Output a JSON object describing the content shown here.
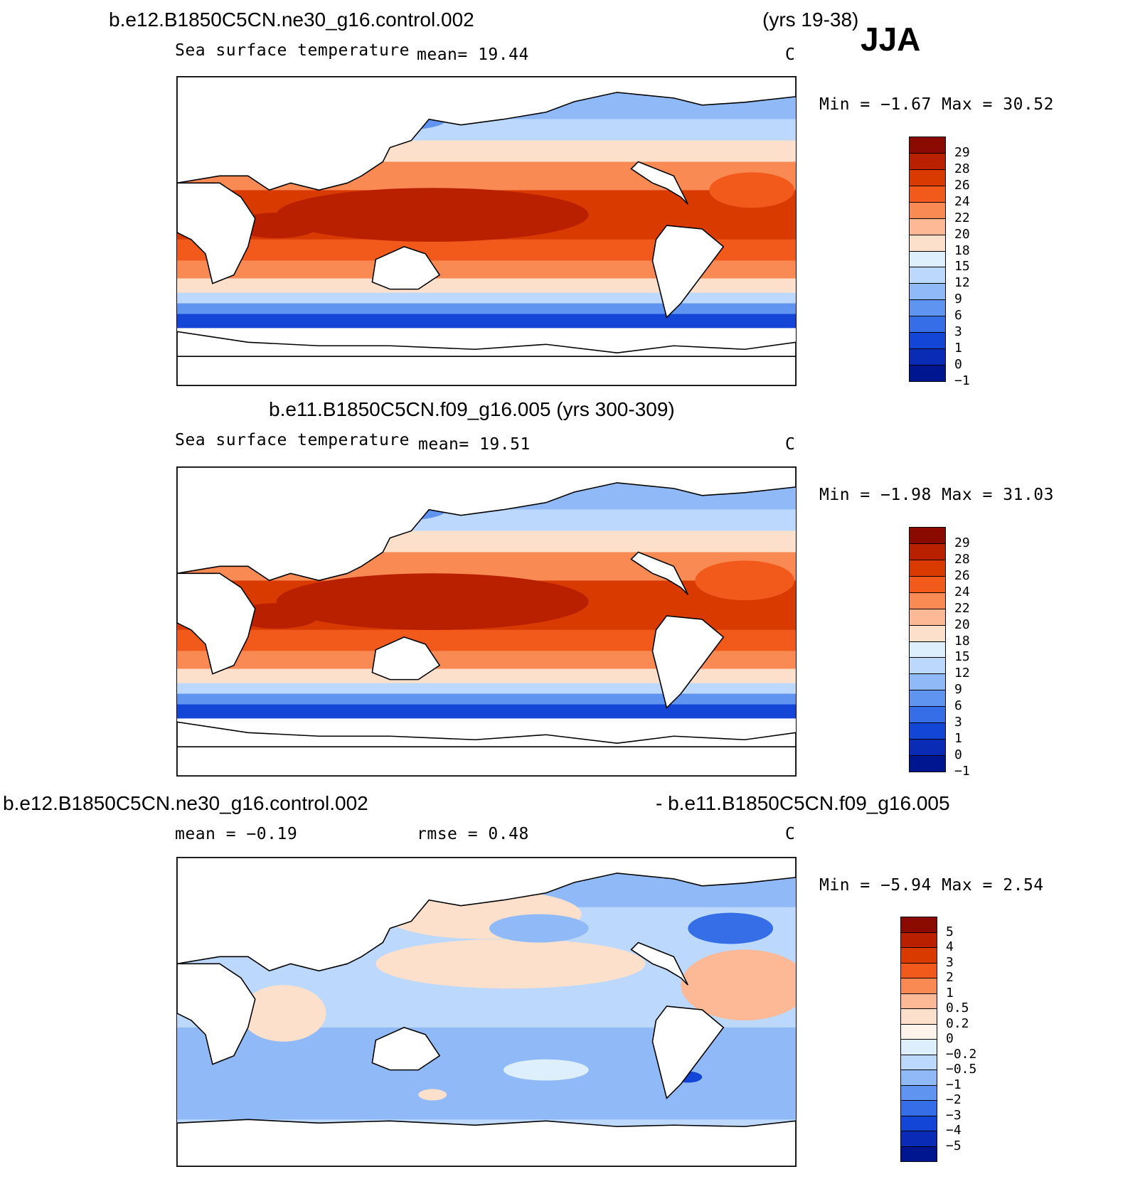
{
  "season": "JJA",
  "panels": [
    {
      "title_left": "b.e12.B1850C5CN.ne30_g16.control.002",
      "title_right": "(yrs 19-38)",
      "field": "Sea surface temperature",
      "stat1": "mean=   19.44",
      "stat2": "",
      "units": "C",
      "minmax": "Min =   −1.67 Max =   30.52",
      "colorbar": {
        "labels": [
          "29",
          "28",
          "26",
          "24",
          "22",
          "20",
          "18",
          "15",
          "12",
          "9",
          "6",
          "3",
          "1",
          "0",
          "−1"
        ],
        "colors": [
          "#8a0a00",
          "#b82000",
          "#d83a00",
          "#f25a1c",
          "#fa8a54",
          "#fdb896",
          "#fde0cc",
          "#ddeefd",
          "#bcd8fc",
          "#8fbaf7",
          "#5f95f0",
          "#356ee6",
          "#1346d6",
          "#0a2bb6",
          "#001590"
        ]
      }
    },
    {
      "title_left": "b.e11.B1850C5CN.f09_g16.005 (yrs 300-309)",
      "title_right": "",
      "field": "Sea surface temperature",
      "stat1": "mean=   19.51",
      "stat2": "",
      "units": "C",
      "minmax": "Min =   −1.98 Max =   31.03",
      "colorbar": {
        "labels": [
          "29",
          "28",
          "26",
          "24",
          "22",
          "20",
          "18",
          "15",
          "12",
          "9",
          "6",
          "3",
          "1",
          "0",
          "−1"
        ],
        "colors": [
          "#8a0a00",
          "#b82000",
          "#d83a00",
          "#f25a1c",
          "#fa8a54",
          "#fdb896",
          "#fde0cc",
          "#ddeefd",
          "#bcd8fc",
          "#8fbaf7",
          "#5f95f0",
          "#356ee6",
          "#1346d6",
          "#0a2bb6",
          "#001590"
        ]
      }
    },
    {
      "title_left": "b.e12.B1850C5CN.ne30_g16.control.002",
      "title_right": "- b.e11.B1850C5CN.f09_g16.005",
      "field": "",
      "stat1": "mean =   −0.19",
      "stat2": "rmse =    0.48",
      "units": "C",
      "minmax": "Min =   −5.94 Max =    2.54",
      "colorbar": {
        "labels": [
          "5",
          "4",
          "3",
          "2",
          "1",
          "0.5",
          "0.2",
          "0",
          "−0.2",
          "−0.5",
          "−1",
          "−2",
          "−3",
          "−4",
          "−5"
        ],
        "colors": [
          "#8a0a00",
          "#b82000",
          "#d83a00",
          "#f25a1c",
          "#fa8a54",
          "#fdb896",
          "#fde0cc",
          "#fff4ec",
          "#ddeefd",
          "#bcd8fc",
          "#8fbaf7",
          "#5f95f0",
          "#356ee6",
          "#1346d6",
          "#0a2bb6",
          "#001590"
        ]
      }
    }
  ]
}
